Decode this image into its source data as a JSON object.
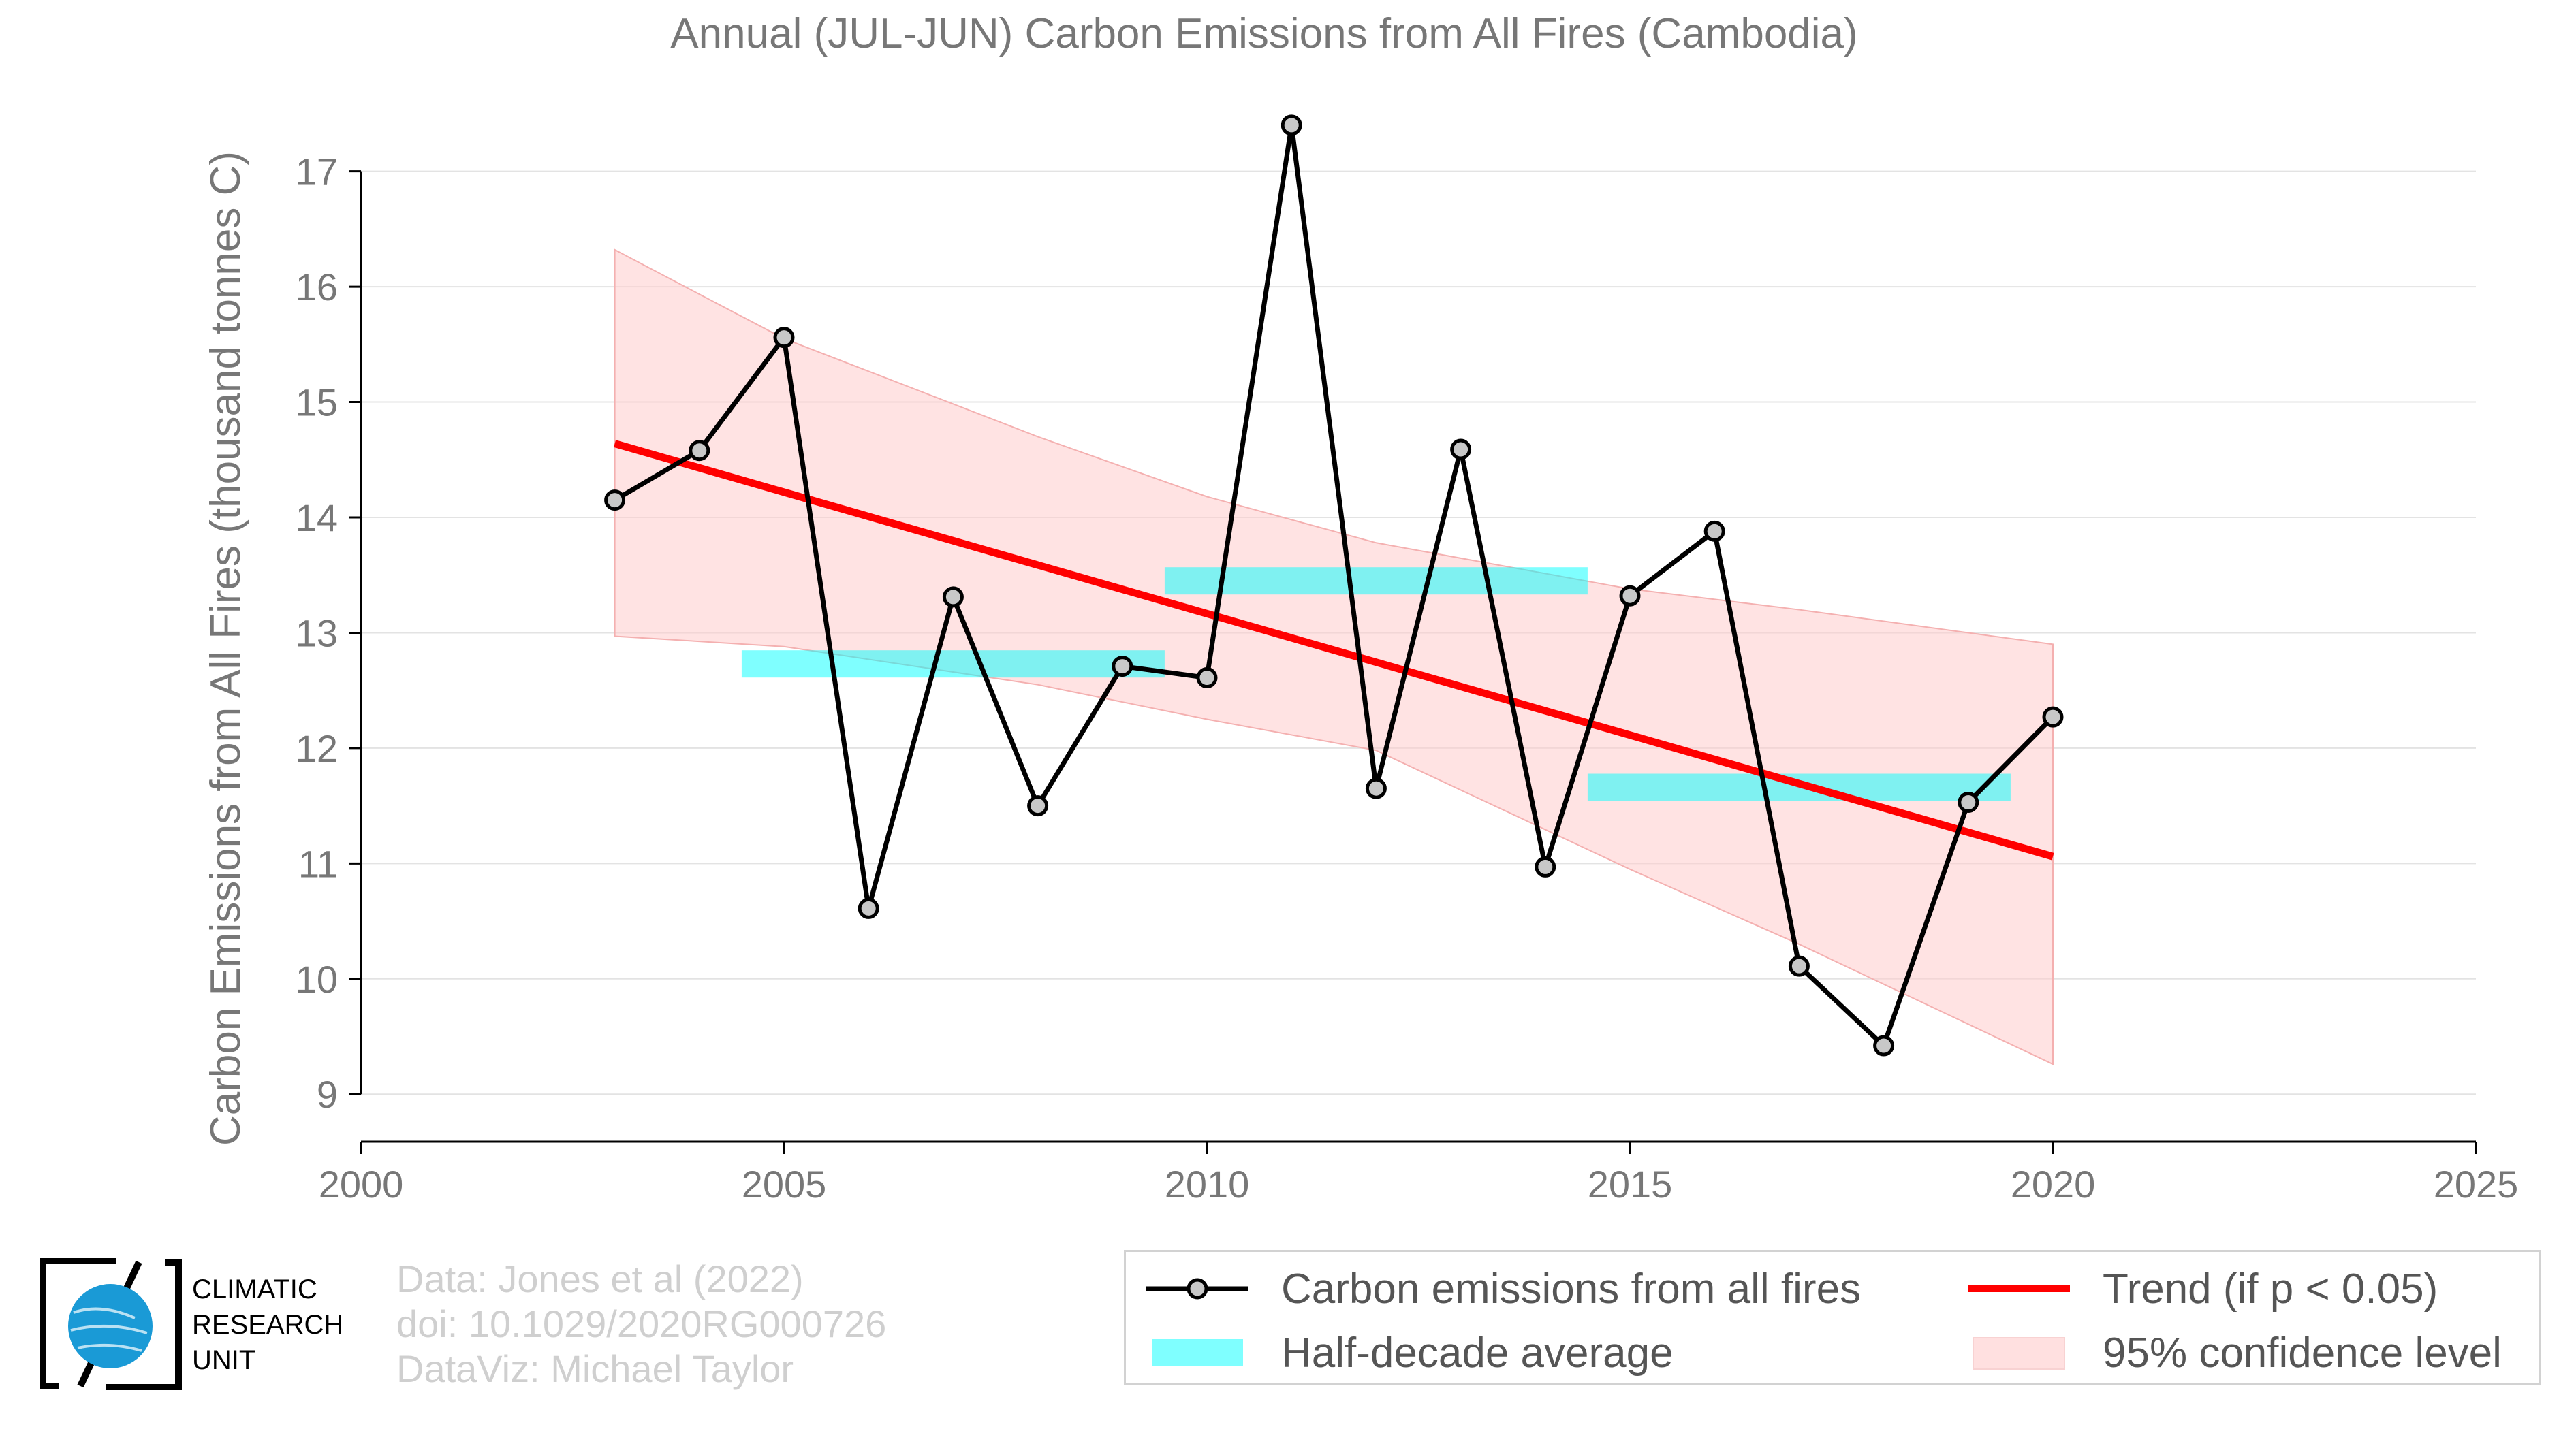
{
  "chart_data": {
    "type": "line",
    "title": "Annual (JUL-JUN) Carbon Emissions from All Fires (Cambodia)",
    "xlabel": "",
    "ylabel": "Carbon Emissions from All Fires (thousand tonnes C)",
    "xlim": [
      2000,
      2025
    ],
    "ylim": [
      8.6,
      17.6
    ],
    "xticks": [
      2000,
      2005,
      2010,
      2015,
      2020,
      2025
    ],
    "yticks": [
      9,
      10,
      11,
      12,
      13,
      14,
      15,
      16,
      17
    ],
    "grid": "horizontal",
    "legend_placement": "bottom-right",
    "series": [
      {
        "name": "Carbon emissions from all fires",
        "type": "line",
        "color": "#000000",
        "marker_color": "#c8c8c8",
        "x": [
          2003,
          2004,
          2005,
          2006,
          2007,
          2008,
          2009,
          2010,
          2011,
          2012,
          2013,
          2014,
          2015,
          2016,
          2017,
          2018,
          2019,
          2020
        ],
        "values": [
          14.15,
          14.58,
          15.56,
          10.61,
          13.31,
          11.5,
          12.71,
          12.61,
          17.4,
          11.65,
          14.59,
          10.97,
          13.32,
          13.88,
          10.11,
          9.42,
          11.53,
          12.27
        ]
      },
      {
        "name": "Half-decade average",
        "type": "segments",
        "color": "#00ffff",
        "segments": [
          {
            "x": [
              2004.5,
              2009.5
            ],
            "value": 12.73
          },
          {
            "x": [
              2009.5,
              2014.5
            ],
            "value": 13.45
          },
          {
            "x": [
              2014.5,
              2019.5
            ],
            "value": 11.66
          }
        ]
      },
      {
        "name": "Trend (if p < 0.05)",
        "type": "line",
        "color": "#ff0000",
        "x": [
          2003,
          2020
        ],
        "values": [
          14.64,
          11.06
        ]
      },
      {
        "name": "95% confidence level",
        "type": "band",
        "color": "#ffcccc",
        "x": [
          2003,
          2005,
          2008,
          2010,
          2012,
          2015,
          2017,
          2020
        ],
        "upper": [
          16.32,
          15.55,
          14.7,
          14.18,
          13.78,
          13.38,
          13.2,
          12.9
        ],
        "lower": [
          12.97,
          12.88,
          12.55,
          12.25,
          11.98,
          10.95,
          10.3,
          9.26
        ]
      }
    ]
  },
  "credits": {
    "data": "Data: Jones et al (2022)",
    "doi": "doi: 10.1029/2020RG000726",
    "dataviz": "DataViz: Michael Taylor"
  },
  "logo": {
    "line1": "CLIMATIC",
    "line2": "RESEARCH",
    "line3": "UNIT",
    "globe_color": "#1a9ad6"
  }
}
